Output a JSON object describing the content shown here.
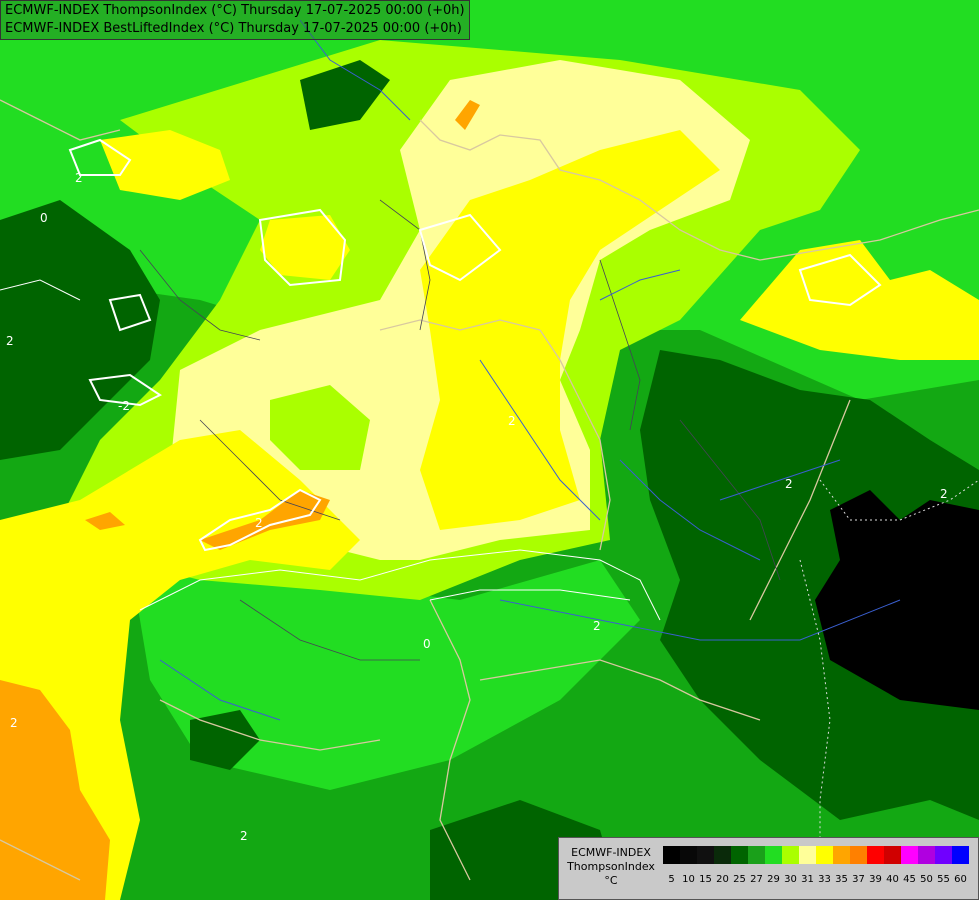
{
  "title": {
    "line1": "ECMWF-INDEX ThompsonIndex (°C) Thursday 17-07-2025 00:00 (+0h)",
    "line2": "ECMWF-INDEX BestLiftedIndex (°C) Thursday 17-07-2025 00:00 (+0h)"
  },
  "contour_labels": [
    "2",
    "2",
    "-2",
    "2",
    "2",
    "0",
    "2",
    "0",
    "2",
    "2",
    "2",
    "2"
  ],
  "legend": {
    "model": "ECMWF-INDEX",
    "variable": "ThompsonIndex",
    "unit": "°C",
    "values": [
      "5",
      "10",
      "15",
      "20",
      "25",
      "27",
      "29",
      "30",
      "31",
      "33",
      "35",
      "37",
      "39",
      "40",
      "45",
      "50",
      "55",
      "60"
    ],
    "colors": [
      "#000000",
      "#080808",
      "#101010",
      "#0a2a0a",
      "#006400",
      "#1aa01a",
      "#22dd22",
      "#aaff00",
      "#ffff99",
      "#ffff00",
      "#ffa500",
      "#ff8000",
      "#ff0000",
      "#d00000",
      "#ff00ff",
      "#b000e0",
      "#7000ff",
      "#0000ff"
    ]
  },
  "colors": {
    "dark_green": "#006400",
    "mid_green": "#13a813",
    "bright_green": "#22dd22",
    "yellow_green": "#aaff00",
    "pale_yellow": "#ffff99",
    "yellow": "#ffff00",
    "orange": "#ffa500",
    "black": "#000000"
  }
}
